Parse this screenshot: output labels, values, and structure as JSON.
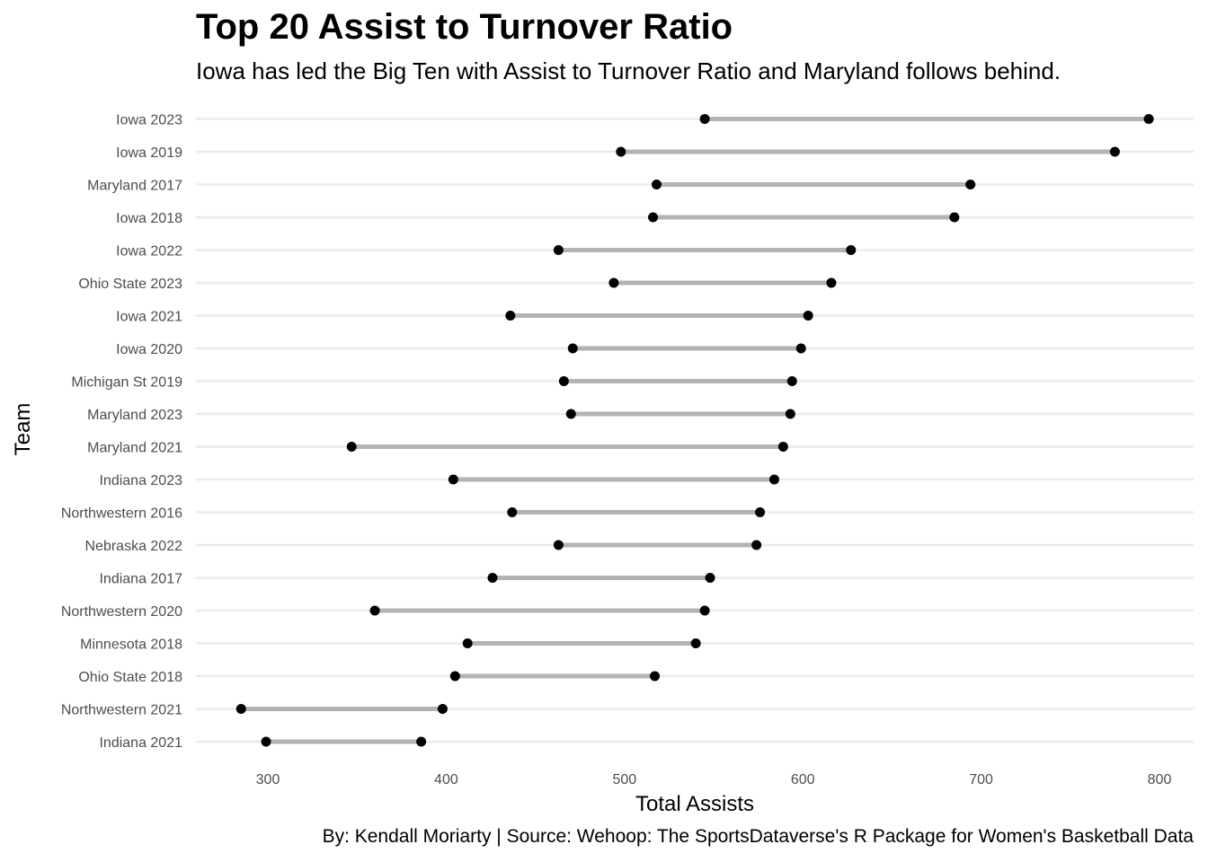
{
  "chart_data": {
    "type": "dumbbell",
    "title": "Top 20 Assist to Turnover Ratio",
    "subtitle": "Iowa has led the Big Ten with Assist to Turnover Ratio and Maryland follows behind.",
    "xlabel": "Total Assists",
    "ylabel": "Team",
    "caption": "By: Kendall Moriarty  |  Source: Wehoop: The SportsDataverse's R Package for Women's Basketball Data",
    "xlim": [
      260,
      820
    ],
    "xticks": [
      300,
      400,
      500,
      600,
      700,
      800
    ],
    "grid": true,
    "colors": {
      "segment": "#b3b3b3",
      "point": "#000000",
      "grid": "#ebebeb"
    },
    "rows": [
      {
        "team": "Iowa 2023",
        "low": 545,
        "high": 794
      },
      {
        "team": "Iowa 2019",
        "low": 498,
        "high": 775
      },
      {
        "team": "Maryland 2017",
        "low": 518,
        "high": 694
      },
      {
        "team": "Iowa 2018",
        "low": 516,
        "high": 685
      },
      {
        "team": "Iowa 2022",
        "low": 463,
        "high": 627
      },
      {
        "team": "Ohio State 2023",
        "low": 494,
        "high": 616
      },
      {
        "team": "Iowa 2021",
        "low": 436,
        "high": 603
      },
      {
        "team": "Iowa 2020",
        "low": 471,
        "high": 599
      },
      {
        "team": "Michigan St 2019",
        "low": 466,
        "high": 594
      },
      {
        "team": "Maryland 2023",
        "low": 470,
        "high": 593
      },
      {
        "team": "Maryland 2021",
        "low": 347,
        "high": 589
      },
      {
        "team": "Indiana 2023",
        "low": 404,
        "high": 584
      },
      {
        "team": "Northwestern 2016",
        "low": 437,
        "high": 576
      },
      {
        "team": "Nebraska 2022",
        "low": 463,
        "high": 574
      },
      {
        "team": "Indiana 2017",
        "low": 426,
        "high": 548
      },
      {
        "team": "Northwestern 2020",
        "low": 360,
        "high": 545
      },
      {
        "team": "Minnesota 2018",
        "low": 412,
        "high": 540
      },
      {
        "team": "Ohio State 2018",
        "low": 405,
        "high": 517
      },
      {
        "team": "Northwestern 2021",
        "low": 285,
        "high": 398
      },
      {
        "team": "Indiana 2021",
        "low": 299,
        "high": 386
      }
    ]
  }
}
